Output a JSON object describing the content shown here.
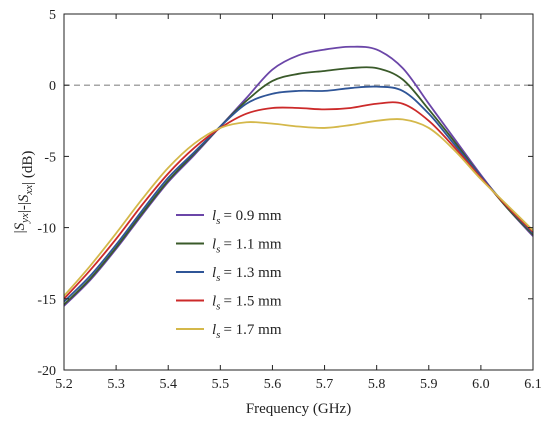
{
  "chart_data": {
    "type": "line",
    "xlabel": "Frequency (GHz)",
    "ylabel": "|S_yx|-|S_xx| (dB)",
    "xlim": [
      5.2,
      6.1
    ],
    "ylim": [
      -20,
      5
    ],
    "xticks": [
      "5.2",
      "5.3",
      "5.4",
      "5.5",
      "5.6",
      "5.7",
      "5.8",
      "5.9",
      "6.0",
      "6.1"
    ],
    "yticks": [
      "5",
      "0",
      "-5",
      "-10",
      "-15",
      "-20"
    ],
    "reference_line": {
      "y": 0,
      "style": "dashed"
    },
    "legend": {
      "position": "lower-left",
      "label_prefix": "l",
      "label_subscript": "s"
    },
    "series": [
      {
        "name": "= 0.9 mm",
        "color": "#6b46a8",
        "x": [
          5.2,
          5.25,
          5.3,
          5.35,
          5.4,
          5.45,
          5.5,
          5.55,
          5.6,
          5.65,
          5.7,
          5.75,
          5.8,
          5.85,
          5.9,
          5.95,
          6.0,
          6.05,
          6.1
        ],
        "y": [
          -15.5,
          -13.7,
          -11.5,
          -9.1,
          -6.8,
          -4.9,
          -2.9,
          -0.9,
          1.1,
          2.1,
          2.5,
          2.7,
          2.5,
          1.2,
          -1.3,
          -3.8,
          -6.3,
          -8.6,
          -10.6
        ]
      },
      {
        "name": "= 1.1 mm",
        "color": "#3a5a2a",
        "x": [
          5.2,
          5.25,
          5.3,
          5.35,
          5.4,
          5.45,
          5.5,
          5.55,
          5.6,
          5.65,
          5.7,
          5.75,
          5.8,
          5.85,
          5.9,
          5.95,
          6.0,
          6.05,
          6.1
        ],
        "y": [
          -15.4,
          -13.6,
          -11.4,
          -9.0,
          -6.7,
          -4.8,
          -2.9,
          -1.1,
          0.3,
          0.8,
          1.0,
          1.2,
          1.2,
          0.4,
          -1.7,
          -4.0,
          -6.4,
          -8.6,
          -10.5
        ]
      },
      {
        "name": "= 1.3 mm",
        "color": "#2f5597",
        "x": [
          5.2,
          5.25,
          5.3,
          5.35,
          5.4,
          5.45,
          5.5,
          5.55,
          5.6,
          5.65,
          5.7,
          5.75,
          5.8,
          5.85,
          5.9,
          5.95,
          6.0,
          6.05,
          6.1
        ],
        "y": [
          -15.2,
          -13.4,
          -11.2,
          -8.8,
          -6.5,
          -4.7,
          -2.9,
          -1.3,
          -0.6,
          -0.4,
          -0.4,
          -0.2,
          -0.1,
          -0.4,
          -2.0,
          -4.2,
          -6.4,
          -8.5,
          -10.4
        ]
      },
      {
        "name": "= 1.5 mm",
        "color": "#cc2a2a",
        "x": [
          5.2,
          5.25,
          5.3,
          5.35,
          5.4,
          5.45,
          5.5,
          5.55,
          5.6,
          5.65,
          5.7,
          5.75,
          5.8,
          5.85,
          5.9,
          5.95,
          6.0,
          6.05,
          6.1
        ],
        "y": [
          -15.0,
          -13.0,
          -10.8,
          -8.4,
          -6.2,
          -4.4,
          -3.0,
          -2.0,
          -1.6,
          -1.6,
          -1.7,
          -1.6,
          -1.3,
          -1.3,
          -2.5,
          -4.4,
          -6.5,
          -8.5,
          -10.3
        ]
      },
      {
        "name": "= 1.7 mm",
        "color": "#d4b84a",
        "x": [
          5.2,
          5.25,
          5.3,
          5.35,
          5.4,
          5.45,
          5.5,
          5.55,
          5.6,
          5.65,
          5.7,
          5.75,
          5.8,
          5.85,
          5.9,
          5.95,
          6.0,
          6.05,
          6.1
        ],
        "y": [
          -14.8,
          -12.7,
          -10.4,
          -8.0,
          -5.8,
          -4.1,
          -3.0,
          -2.6,
          -2.7,
          -2.9,
          -3.0,
          -2.8,
          -2.5,
          -2.4,
          -3.0,
          -4.6,
          -6.6,
          -8.4,
          -10.2
        ]
      }
    ]
  }
}
